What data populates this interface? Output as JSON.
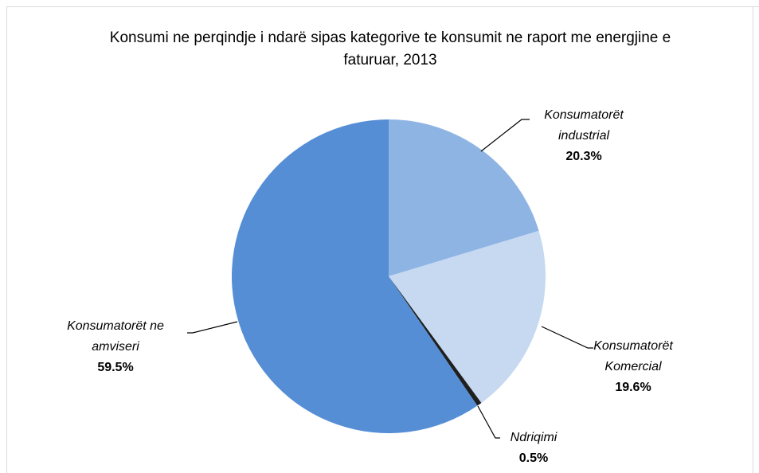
{
  "chart_data": {
    "type": "pie",
    "title": "Konsumi ne perqindje i ndarë sipas kategorive te konsumit ne raport me energjine e faturuar, 2013",
    "categories": [
      "Konsumatorët industrial",
      "Konsumatorët Komercial",
      "Ndriqimi",
      "Konsumatorët ne amviseri"
    ],
    "values": [
      20.3,
      19.6,
      0.5,
      59.5
    ],
    "value_labels": [
      "20.3%",
      "19.6%",
      "0.5%",
      "59.5%"
    ],
    "colors": [
      "#8eb4e3",
      "#c6d9f1",
      "#1f1f1f",
      "#558ed5"
    ]
  }
}
